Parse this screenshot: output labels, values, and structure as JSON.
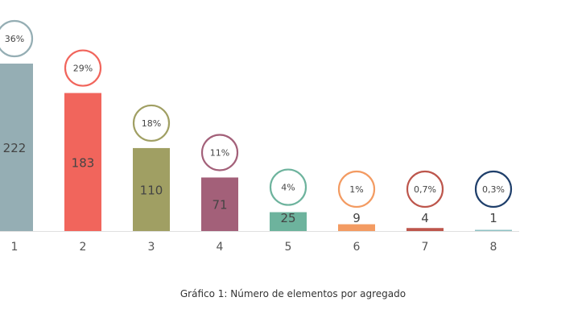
{
  "chart_data": {
    "type": "bar",
    "title": "Gráfico 1: Número de elementos por agregado",
    "categories": [
      "1",
      "2",
      "3",
      "4",
      "5",
      "6",
      "7",
      "8"
    ],
    "values": [
      222,
      183,
      110,
      71,
      25,
      9,
      4,
      1
    ],
    "percent_labels": [
      "36%",
      "29%",
      "18%",
      "11%",
      "4%",
      "1%",
      "0,7%",
      "0,3%"
    ],
    "colors": [
      "#95aeb4",
      "#f1655c",
      "#a09f63",
      "#a36079",
      "#6db39d",
      "#f39b62",
      "#bd564c",
      "#1f3f6b"
    ],
    "bar_colors": [
      "#95aeb4",
      "#f1655c",
      "#a09f63",
      "#a36079",
      "#6db39d",
      "#f39b62",
      "#bd564c",
      "#8fc1c4"
    ],
    "xlabel": "",
    "ylabel": "",
    "ylim": [
      0,
      222
    ],
    "grid": false,
    "legend": "none"
  }
}
